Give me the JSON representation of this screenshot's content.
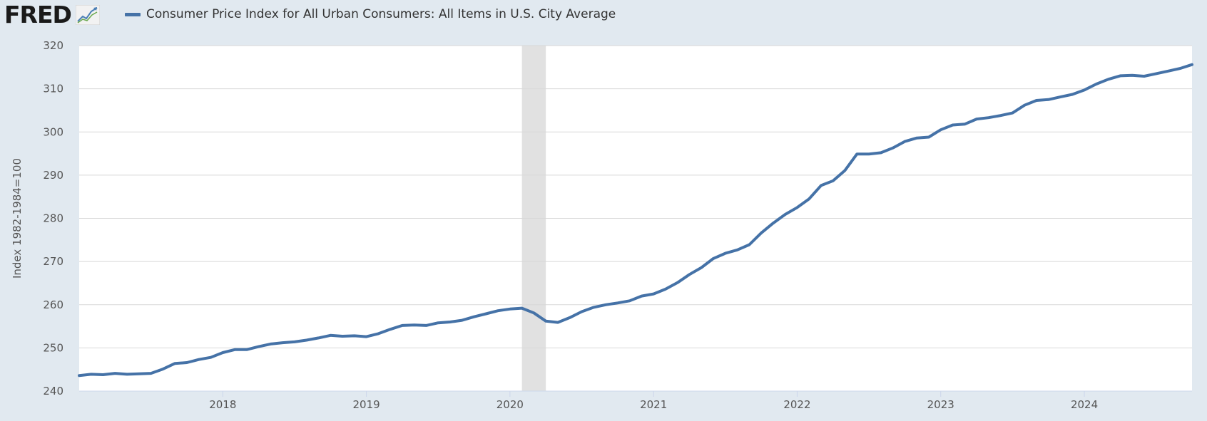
{
  "header": {
    "logo_text": "FRED",
    "logo_icon": "fred-graph-icon",
    "legend_label": "Consumer Price Index for All Urban Consumers: All Items in U.S. City Average"
  },
  "colors": {
    "background": "#e1e9f0",
    "plot_background": "#ffffff",
    "series_line": "#4572a7",
    "recession_band": "#e1e1e1",
    "gridline": "#d8d8d8",
    "tick_text": "#555555"
  },
  "chart_data": {
    "type": "line",
    "title": "",
    "xlabel": "",
    "ylabel": "Index 1982-1984=100",
    "ylim": [
      240,
      320
    ],
    "yticks": [
      "240",
      "250",
      "260",
      "270",
      "280",
      "290",
      "300",
      "310",
      "320"
    ],
    "xlim": [
      "2017-01",
      "2024-10"
    ],
    "xticks": [
      "2018",
      "2019",
      "2020",
      "2021",
      "2022",
      "2023",
      "2024"
    ],
    "grid": true,
    "legend_position": "top-left",
    "recessions": [
      {
        "start": "2020-02",
        "end": "2020-04"
      }
    ],
    "series": [
      {
        "name": "Consumer Price Index for All Urban Consumers: All Items in U.S. City Average",
        "x": [
          "2017-01",
          "2017-02",
          "2017-03",
          "2017-04",
          "2017-05",
          "2017-06",
          "2017-07",
          "2017-08",
          "2017-09",
          "2017-10",
          "2017-11",
          "2017-12",
          "2018-01",
          "2018-02",
          "2018-03",
          "2018-04",
          "2018-05",
          "2018-06",
          "2018-07",
          "2018-08",
          "2018-09",
          "2018-10",
          "2018-11",
          "2018-12",
          "2019-01",
          "2019-02",
          "2019-03",
          "2019-04",
          "2019-05",
          "2019-06",
          "2019-07",
          "2019-08",
          "2019-09",
          "2019-10",
          "2019-11",
          "2019-12",
          "2020-01",
          "2020-02",
          "2020-03",
          "2020-04",
          "2020-05",
          "2020-06",
          "2020-07",
          "2020-08",
          "2020-09",
          "2020-10",
          "2020-11",
          "2020-12",
          "2021-01",
          "2021-02",
          "2021-03",
          "2021-04",
          "2021-05",
          "2021-06",
          "2021-07",
          "2021-08",
          "2021-09",
          "2021-10",
          "2021-11",
          "2021-12",
          "2022-01",
          "2022-02",
          "2022-03",
          "2022-04",
          "2022-05",
          "2022-06",
          "2022-07",
          "2022-08",
          "2022-09",
          "2022-10",
          "2022-11",
          "2022-12",
          "2023-01",
          "2023-02",
          "2023-03",
          "2023-04",
          "2023-05",
          "2023-06",
          "2023-07",
          "2023-08",
          "2023-09",
          "2023-10",
          "2023-11",
          "2023-12",
          "2024-01",
          "2024-02",
          "2024-03",
          "2024-04",
          "2024-05",
          "2024-06",
          "2024-07",
          "2024-08",
          "2024-09",
          "2024-10"
        ],
        "values": [
          243.6,
          243.9,
          243.8,
          244.1,
          243.9,
          244.0,
          244.1,
          245.1,
          246.4,
          246.6,
          247.3,
          247.8,
          248.9,
          249.6,
          249.6,
          250.3,
          250.9,
          251.2,
          251.4,
          251.8,
          252.3,
          252.9,
          252.7,
          252.8,
          252.6,
          253.3,
          254.3,
          255.2,
          255.3,
          255.2,
          255.8,
          256.0,
          256.4,
          257.2,
          257.9,
          258.6,
          259.0,
          259.2,
          258.1,
          256.2,
          255.9,
          257.0,
          258.4,
          259.4,
          260.0,
          260.4,
          260.9,
          262.0,
          262.5,
          263.6,
          265.1,
          267.0,
          268.6,
          270.7,
          271.9,
          272.7,
          273.9,
          276.6,
          278.9,
          280.9,
          282.5,
          284.5,
          287.6,
          288.7,
          291.1,
          294.9,
          294.9,
          295.2,
          296.3,
          297.8,
          298.6,
          298.8,
          300.5,
          301.6,
          301.8,
          303.0,
          303.3,
          303.8,
          304.4,
          306.2,
          307.3,
          307.5,
          308.1,
          308.7,
          309.7,
          311.1,
          312.2,
          313.0,
          313.1,
          312.9,
          313.5,
          314.1,
          314.7,
          315.6
        ]
      }
    ]
  }
}
